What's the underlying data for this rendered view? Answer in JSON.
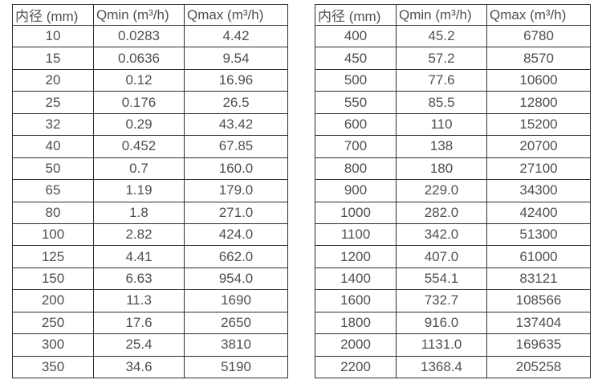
{
  "page": {
    "background": "#ffffff",
    "text_color": "#4f4f4f",
    "border_color": "#2e2e2e"
  },
  "tables": {
    "headers": [
      "内径 (mm)",
      "Qmin (m³/h)",
      "Qmax (m³/h)"
    ],
    "left": {
      "rows": [
        [
          "10",
          "0.0283",
          "4.42"
        ],
        [
          "15",
          "0.0636",
          "9.54"
        ],
        [
          "20",
          "0.12",
          "16.96"
        ],
        [
          "25",
          "0.176",
          "26.5"
        ],
        [
          "32",
          "0.29",
          "43.42"
        ],
        [
          "40",
          "0.452",
          "67.85"
        ],
        [
          "50",
          "0.7",
          "160.0"
        ],
        [
          "65",
          "1.19",
          "179.0"
        ],
        [
          "80",
          "1.8",
          "271.0"
        ],
        [
          "100",
          "2.82",
          "424.0"
        ],
        [
          "125",
          "4.41",
          "662.0"
        ],
        [
          "150",
          "6.63",
          "954.0"
        ],
        [
          "200",
          "11.3",
          "1690"
        ],
        [
          "250",
          "17.6",
          "2650"
        ],
        [
          "300",
          "25.4",
          "3810"
        ],
        [
          "350",
          "34.6",
          "5190"
        ]
      ]
    },
    "right": {
      "rows": [
        [
          "400",
          "45.2",
          "6780"
        ],
        [
          "450",
          "57.2",
          "8570"
        ],
        [
          "500",
          "77.6",
          "10600"
        ],
        [
          "550",
          "85.5",
          "12800"
        ],
        [
          "600",
          "110",
          "15200"
        ],
        [
          "700",
          "138",
          "20700"
        ],
        [
          "800",
          "180",
          "27100"
        ],
        [
          "900",
          "229.0",
          "34300"
        ],
        [
          "1000",
          "282.0",
          "42400"
        ],
        [
          "1100",
          "342.0",
          "51300"
        ],
        [
          "1200",
          "407.0",
          "61000"
        ],
        [
          "1400",
          "554.1",
          "83121"
        ],
        [
          "1600",
          "732.7",
          "108566"
        ],
        [
          "1800",
          "916.0",
          "137404"
        ],
        [
          "2000",
          "1131.0",
          "169635"
        ],
        [
          "2200",
          "1368.4",
          "205258"
        ]
      ]
    }
  }
}
